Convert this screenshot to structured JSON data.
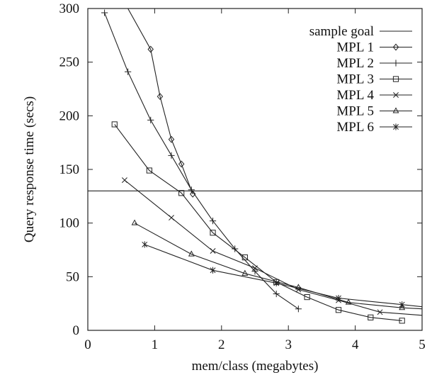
{
  "chart_data": {
    "type": "line",
    "title": "",
    "xlabel": "mem/class (megabytes)",
    "ylabel": "Query response time (secs)",
    "xlim": [
      0,
      5
    ],
    "ylim": [
      0,
      300
    ],
    "xticks": [
      "0",
      "1",
      "2",
      "3",
      "4",
      "5"
    ],
    "yticks": [
      "0",
      "50",
      "100",
      "150",
      "200",
      "250",
      "300"
    ],
    "grid": false,
    "legend_position": "top-right",
    "goal": {
      "name": "sample goal",
      "y": 130
    },
    "series": [
      {
        "name": "MPL 1",
        "marker": "diamond",
        "x": [
          0.6,
          0.94,
          1.08,
          1.25,
          1.4,
          1.57
        ],
        "y": [
          300,
          262,
          218,
          178,
          155,
          127
        ]
      },
      {
        "name": "MPL 2",
        "marker": "plus",
        "x": [
          0.25,
          0.6,
          0.94,
          1.25,
          1.55,
          1.87,
          2.2,
          2.5,
          2.82,
          3.15
        ],
        "y": [
          296,
          241,
          196,
          163,
          131,
          102,
          76,
          55,
          34,
          20
        ]
      },
      {
        "name": "MPL 3",
        "marker": "square",
        "x": [
          0.4,
          0.92,
          1.4,
          1.87,
          2.35,
          2.82,
          3.28,
          3.75,
          4.23,
          4.7
        ],
        "y": [
          192,
          149,
          128,
          91,
          68,
          45,
          31,
          19,
          12,
          9
        ]
      },
      {
        "name": "MPL 4",
        "marker": "x",
        "x": [
          0.55,
          1.25,
          1.87,
          2.5,
          3.15,
          3.75,
          4.37,
          5.0
        ],
        "y": [
          140,
          105,
          74,
          58,
          38,
          28,
          17,
          14
        ]
      },
      {
        "name": "MPL 5",
        "marker": "triangle",
        "x": [
          0.7,
          1.55,
          2.35,
          3.15,
          3.9,
          4.7,
          5.0
        ],
        "y": [
          100,
          71,
          53,
          40,
          26,
          21,
          20
        ]
      },
      {
        "name": "MPL 6",
        "marker": "asterisk",
        "x": [
          0.85,
          1.87,
          2.82,
          3.75,
          4.7,
          5.0
        ],
        "y": [
          80,
          56,
          44,
          30,
          24,
          22
        ]
      }
    ]
  }
}
